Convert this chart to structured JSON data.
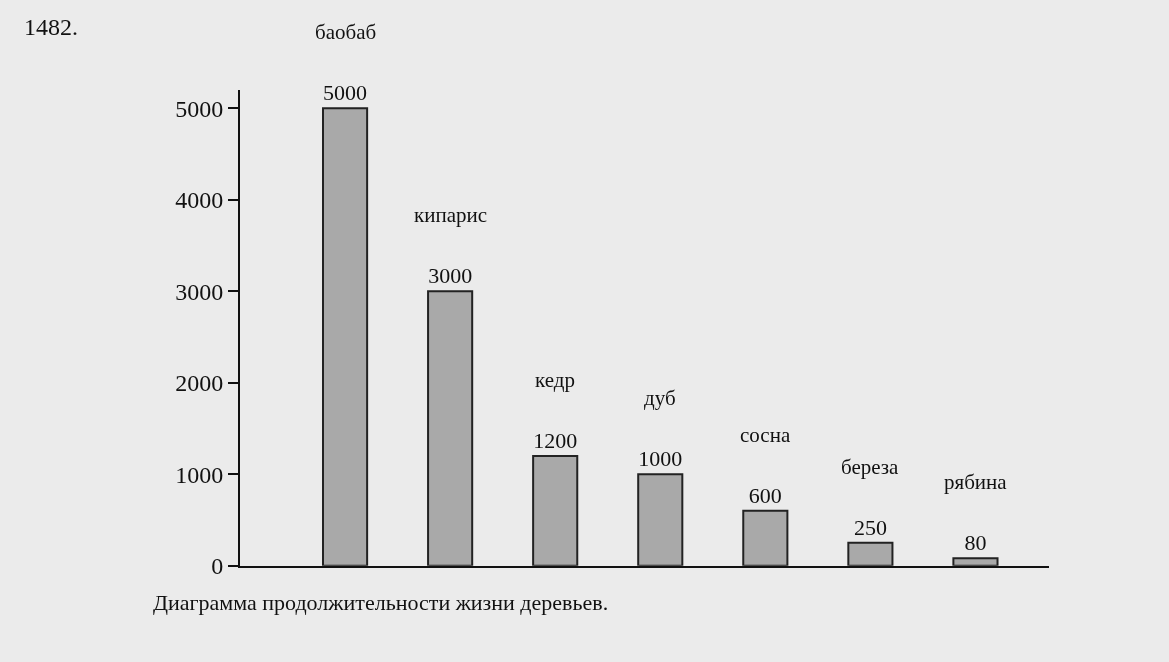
{
  "chart_data": {
    "type": "bar",
    "categories": [
      "баобаб",
      "кипарис",
      "кедр",
      "дуб",
      "сосна",
      "береза",
      "рябина"
    ],
    "values": [
      5000,
      3000,
      1200,
      1000,
      600,
      250,
      80
    ],
    "color": "#a9a9a9",
    "data_labels": true,
    "ylim": [
      0,
      5200
    ],
    "yticks": [
      0,
      1000,
      2000,
      3000,
      4000,
      5000
    ],
    "tick_labels": "y",
    "grid": false,
    "annotations": [
      "1482.",
      "Диаграмма продолжительности жизни деревьев."
    ]
  }
}
